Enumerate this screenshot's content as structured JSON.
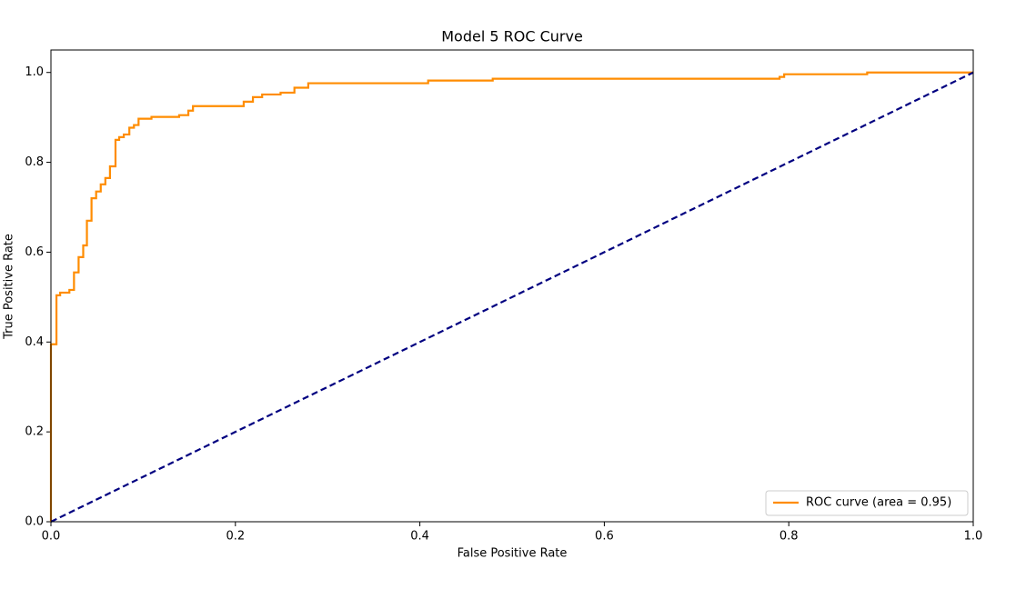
{
  "chart_data": {
    "type": "line",
    "title": "Model 5 ROC Curve",
    "x_label": "False Positive Rate",
    "y_label": "True Positive Rate",
    "xlim": [
      0,
      1
    ],
    "ylim": [
      0,
      1.05
    ],
    "xticks": [
      {
        "value": 0,
        "label": "0.0"
      },
      {
        "value": 0.2,
        "label": "0.2"
      },
      {
        "value": 0.4,
        "label": "0.4"
      },
      {
        "value": 0.6,
        "label": "0.6"
      },
      {
        "value": 0.8,
        "label": "0.8"
      },
      {
        "value": 1,
        "label": "1.0"
      }
    ],
    "yticks": [
      {
        "value": 0,
        "label": "0.0"
      },
      {
        "value": 0.2,
        "label": "0.2"
      },
      {
        "value": 0.4,
        "label": "0.4"
      },
      {
        "value": 0.6,
        "label": "0.6"
      },
      {
        "value": 0.8,
        "label": "0.8"
      },
      {
        "value": 1,
        "label": "1.0"
      }
    ],
    "grid": false,
    "legend": "lower right",
    "series": [
      {
        "name": "ROC curve (area = 0.95)",
        "color": "#ff8c00",
        "linestyle": "solid",
        "x": [
          0,
          0,
          0.006,
          0.006,
          0.01,
          0.01,
          0.02,
          0.02,
          0.025,
          0.025,
          0.03,
          0.03,
          0.035,
          0.035,
          0.039,
          0.039,
          0.044,
          0.044,
          0.049,
          0.049,
          0.054,
          0.054,
          0.059,
          0.059,
          0.064,
          0.064,
          0.07,
          0.07,
          0.074,
          0.074,
          0.079,
          0.079,
          0.085,
          0.085,
          0.09,
          0.09,
          0.095,
          0.095,
          0.109,
          0.109,
          0.139,
          0.139,
          0.149,
          0.149,
          0.154,
          0.154,
          0.209,
          0.209,
          0.219,
          0.219,
          0.229,
          0.229,
          0.249,
          0.249,
          0.264,
          0.264,
          0.279,
          0.279,
          0.409,
          0.409,
          0.479,
          0.479,
          0.79,
          0.79,
          0.795,
          0.795,
          0.885,
          0.885,
          1.0
        ],
        "values": [
          0,
          0.395,
          0.395,
          0.504,
          0.504,
          0.51,
          0.51,
          0.516,
          0.516,
          0.555,
          0.555,
          0.589,
          0.589,
          0.615,
          0.615,
          0.67,
          0.67,
          0.72,
          0.72,
          0.735,
          0.735,
          0.751,
          0.751,
          0.765,
          0.765,
          0.791,
          0.791,
          0.85,
          0.85,
          0.856,
          0.856,
          0.862,
          0.862,
          0.877,
          0.877,
          0.883,
          0.883,
          0.897,
          0.897,
          0.901,
          0.901,
          0.905,
          0.905,
          0.915,
          0.915,
          0.925,
          0.925,
          0.935,
          0.935,
          0.945,
          0.945,
          0.951,
          0.951,
          0.955,
          0.955,
          0.966,
          0.966,
          0.976,
          0.976,
          0.982,
          0.982,
          0.986,
          0.986,
          0.99,
          0.99,
          0.996,
          0.996,
          1.0,
          1.0
        ]
      },
      {
        "color": "#000080",
        "linestyle": "dashed",
        "x": [
          0,
          1
        ],
        "values": [
          0,
          1
        ]
      }
    ]
  }
}
